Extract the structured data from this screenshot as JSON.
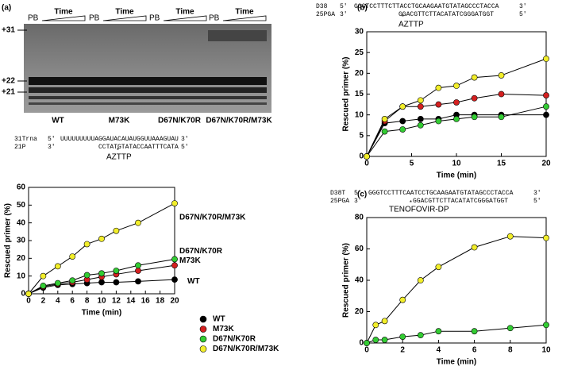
{
  "panels": [
    "(a)",
    "(b)",
    "(c)"
  ],
  "gel": {
    "pb": [
      "PB",
      "PB",
      "PB",
      "PB"
    ],
    "time": [
      "Time",
      "Time",
      "Time",
      "Time"
    ],
    "markers": [
      "+31",
      "+22",
      "+21"
    ],
    "lanes": [
      "WT",
      "M73K",
      "D67N/K70R",
      "D67N/K70R/M73K"
    ]
  },
  "sequences": [
    {
      "rows": [
        [
          "31Trna",
          "5′",
          "UUUUUUUUUAGGAUACAUAUGGUUAAAGUAU",
          "3′"
        ],
        [
          "21P",
          "3′",
          "CCTATGTATACCAATTTCATA",
          "5′"
        ]
      ],
      "star": "*",
      "nucleotide": "AZTTP"
    },
    {
      "rows": [
        [
          "D38",
          "5′",
          "GGGTCCTTTCTTACCTGCAAGAATGTATAGCCCTACCA",
          "3′"
        ],
        [
          "25PGA",
          "3′",
          "GGACGTTCTTACATATCGGGATGGT",
          "5′"
        ]
      ],
      "star": "*",
      "nucleotide": "AZTTP"
    },
    {
      "rows": [
        [
          "D38T",
          "5′",
          "GGGTCCTTTCAATCCTGCAAGAATGTATAGCCCTACCA",
          "3′"
        ],
        [
          "25PGA",
          "3′",
          "GGACGTTCTTACATATCGGGATGGT",
          "5′"
        ]
      ],
      "star": "*",
      "nucleotide": "TENOFOVIR-DP"
    }
  ],
  "chart_data": [
    {
      "type": "scatter",
      "x_label": "Time (min)",
      "y_label": "Rescued primer (%)",
      "x": [
        0,
        2,
        4,
        6,
        8,
        10,
        12,
        15,
        20
      ],
      "xlim": [
        0,
        20
      ],
      "xticks": [
        0,
        2,
        4,
        6,
        8,
        10,
        12,
        14,
        16,
        18,
        20
      ],
      "ylim": [
        0,
        60
      ],
      "yticks": [
        0,
        10,
        20,
        30,
        40,
        50,
        60
      ],
      "legend": "bottom-right",
      "series": [
        {
          "name": "WT",
          "color": "#000000",
          "values": [
            0,
            3.5,
            5,
            5.5,
            6,
            6.5,
            6.5,
            7,
            8
          ]
        },
        {
          "name": "M73K",
          "color": "#d42020",
          "values": [
            0,
            4,
            5.5,
            6.5,
            8,
            9.5,
            11,
            13,
            16
          ]
        },
        {
          "name": "D67N/K70R",
          "color": "#33cc33",
          "values": [
            0,
            4.5,
            6,
            7.5,
            10.5,
            11.5,
            13,
            16,
            19.5
          ]
        },
        {
          "name": "D67N/K70R/M73K",
          "color": "#f2ee2a",
          "values": [
            0,
            10,
            15.5,
            21,
            28,
            31,
            35.5,
            40,
            51
          ]
        }
      ]
    },
    {
      "type": "scatter",
      "x_label": "Time (min)",
      "y_label": "Rescued primer (%)",
      "x": [
        0,
        2,
        4,
        6,
        8,
        10,
        12,
        15,
        20
      ],
      "xlim": [
        0,
        20
      ],
      "xticks": [
        0,
        5,
        10,
        15,
        20
      ],
      "ylim": [
        0,
        30
      ],
      "yticks": [
        0,
        5,
        10,
        15,
        20,
        25,
        30
      ],
      "series": [
        {
          "color": "#000000",
          "values": [
            0,
            8,
            8.5,
            9,
            9,
            10,
            10,
            10,
            10
          ]
        },
        {
          "color": "#d42020",
          "values": [
            0,
            8.5,
            12,
            12,
            12.5,
            13,
            14,
            15,
            14.7
          ]
        },
        {
          "color": "#33cc33",
          "values": [
            0,
            6,
            6.5,
            7.5,
            8.5,
            9,
            9.5,
            9.5,
            12
          ]
        },
        {
          "color": "#f2ee2a",
          "values": [
            0,
            9,
            12,
            13.5,
            16.5,
            17,
            19,
            19.5,
            23.5
          ]
        }
      ]
    },
    {
      "type": "scatter",
      "x_label": "Time (min)",
      "y_label": "Rescued primer (%)",
      "x": [
        0,
        0.5,
        1,
        2,
        3,
        4,
        6,
        8,
        10
      ],
      "xlim": [
        0,
        10
      ],
      "xticks": [
        0,
        2,
        4,
        6,
        8,
        10
      ],
      "ylim": [
        0,
        80
      ],
      "yticks": [
        0,
        20,
        40,
        60,
        80
      ],
      "series": [
        {
          "color": "#f2ee2a",
          "values": [
            0,
            11.5,
            14,
            27.5,
            40,
            48.5,
            61,
            68,
            67
          ]
        },
        {
          "color": "#33cc33",
          "values": [
            0,
            2,
            2,
            4,
            5,
            7.5,
            7.5,
            9.5,
            11.5
          ]
        }
      ]
    }
  ]
}
